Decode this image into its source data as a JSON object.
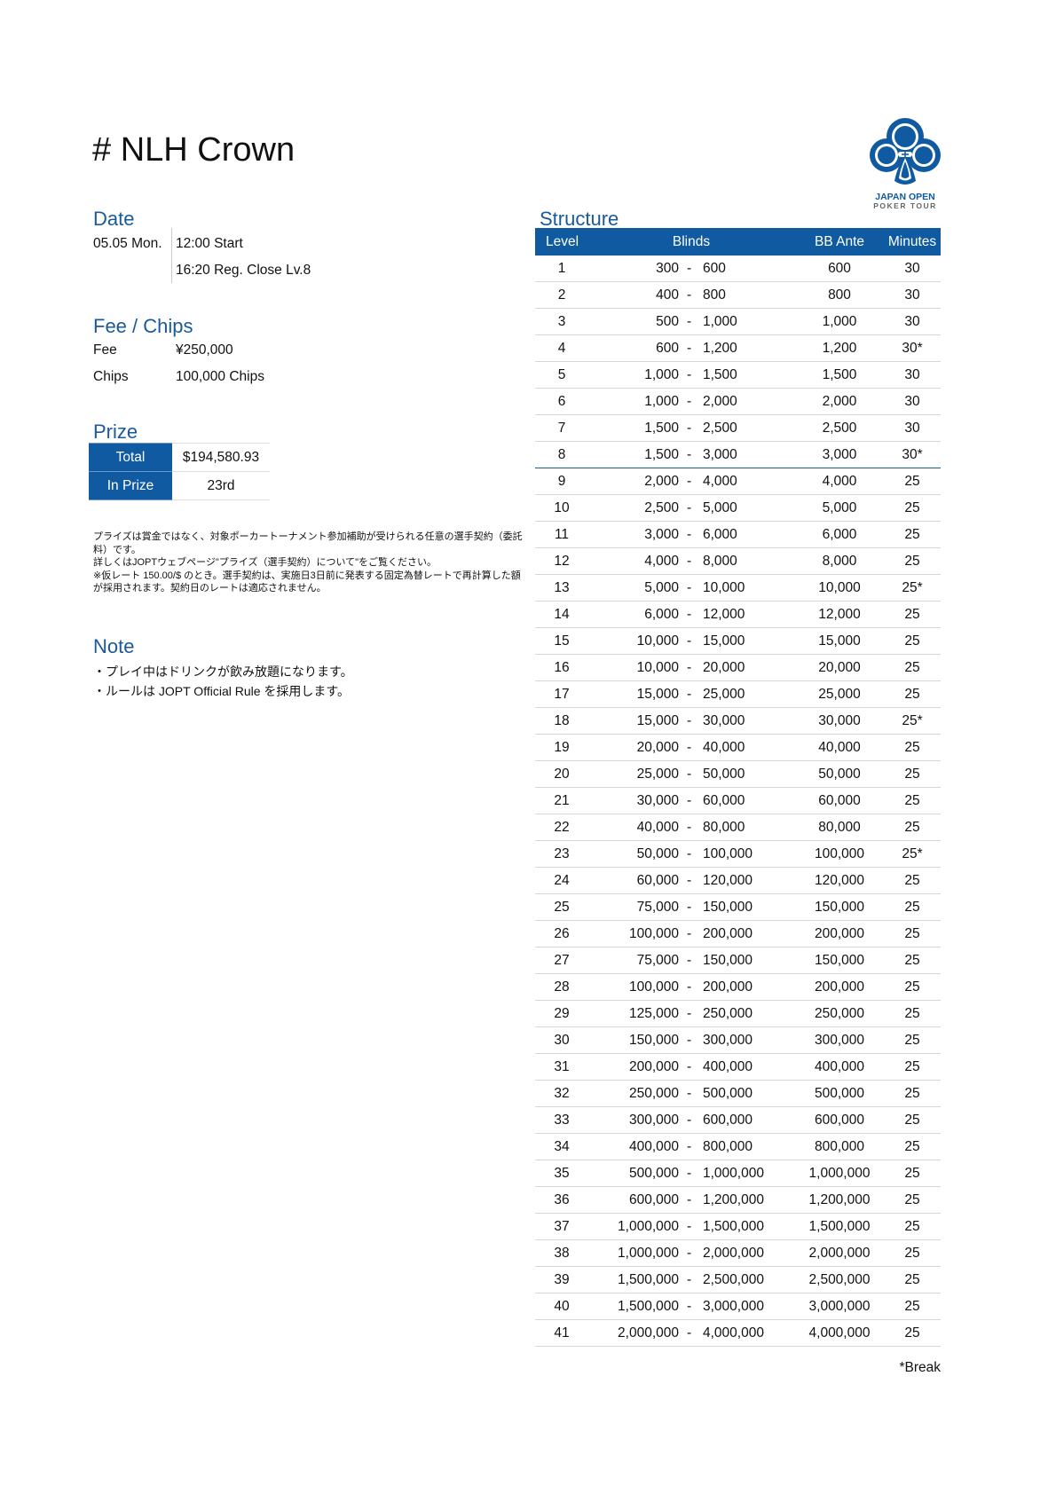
{
  "title": "# NLH Crown",
  "logo": {
    "line1": "JAPAN OPEN",
    "line2": "POKER TOUR",
    "color": "#0f5aa0"
  },
  "date": {
    "heading": "Date",
    "day": "05.05 Mon.",
    "start": "12:00 Start",
    "reg_close": "16:20 Reg. Close Lv.8"
  },
  "fee": {
    "heading": "Fee / Chips",
    "fee_label": "Fee",
    "fee_value": "¥250,000",
    "chips_label": "Chips",
    "chips_value": "100,000 Chips"
  },
  "prize": {
    "heading": "Prize",
    "total_label": "Total",
    "total_value": "$194,580.93",
    "inprize_label": "In Prize",
    "inprize_value": "23rd"
  },
  "disclaimer": [
    "プライズは賞金ではなく、対象ポーカートーナメント参加補助が受けられる任意の選手契約（委託料）です。",
    "詳しくはJOPTウェブページ\"プライズ（選手契約）について\"をご覧ください。",
    "※仮レート 150.00/$ のとき。選手契約は、実施日3日前に発表する固定為替レートで再計算した額が採用されます。契約日のレートは適応されません。"
  ],
  "note": {
    "heading": "Note",
    "lines": [
      "・プレイ中はドリンクが飲み放題になります。",
      "・ルールは JOPT Official Rule を採用します。"
    ]
  },
  "structure": {
    "heading": "Structure",
    "columns": {
      "level": "Level",
      "blinds": "Blinds",
      "ante": "BB Ante",
      "minutes": "Minutes"
    },
    "accent": "#0f5aa0",
    "rows": [
      [
        "1",
        "300",
        "600",
        "600",
        "30"
      ],
      [
        "2",
        "400",
        "800",
        "800",
        "30"
      ],
      [
        "3",
        "500",
        "1,000",
        "1,000",
        "30"
      ],
      [
        "4",
        "600",
        "1,200",
        "1,200",
        "30*"
      ],
      [
        "5",
        "1,000",
        "1,500",
        "1,500",
        "30"
      ],
      [
        "6",
        "1,000",
        "2,000",
        "2,000",
        "30"
      ],
      [
        "7",
        "1,500",
        "2,500",
        "2,500",
        "30"
      ],
      [
        "8",
        "1,500",
        "3,000",
        "3,000",
        "30*"
      ],
      [
        "9",
        "2,000",
        "4,000",
        "4,000",
        "25"
      ],
      [
        "10",
        "2,500",
        "5,000",
        "5,000",
        "25"
      ],
      [
        "11",
        "3,000",
        "6,000",
        "6,000",
        "25"
      ],
      [
        "12",
        "4,000",
        "8,000",
        "8,000",
        "25"
      ],
      [
        "13",
        "5,000",
        "10,000",
        "10,000",
        "25*"
      ],
      [
        "14",
        "6,000",
        "12,000",
        "12,000",
        "25"
      ],
      [
        "15",
        "10,000",
        "15,000",
        "15,000",
        "25"
      ],
      [
        "16",
        "10,000",
        "20,000",
        "20,000",
        "25"
      ],
      [
        "17",
        "15,000",
        "25,000",
        "25,000",
        "25"
      ],
      [
        "18",
        "15,000",
        "30,000",
        "30,000",
        "25*"
      ],
      [
        "19",
        "20,000",
        "40,000",
        "40,000",
        "25"
      ],
      [
        "20",
        "25,000",
        "50,000",
        "50,000",
        "25"
      ],
      [
        "21",
        "30,000",
        "60,000",
        "60,000",
        "25"
      ],
      [
        "22",
        "40,000",
        "80,000",
        "80,000",
        "25"
      ],
      [
        "23",
        "50,000",
        "100,000",
        "100,000",
        "25*"
      ],
      [
        "24",
        "60,000",
        "120,000",
        "120,000",
        "25"
      ],
      [
        "25",
        "75,000",
        "150,000",
        "150,000",
        "25"
      ],
      [
        "26",
        "100,000",
        "200,000",
        "200,000",
        "25"
      ],
      [
        "27",
        "75,000",
        "150,000",
        "150,000",
        "25"
      ],
      [
        "28",
        "100,000",
        "200,000",
        "200,000",
        "25"
      ],
      [
        "29",
        "125,000",
        "250,000",
        "250,000",
        "25"
      ],
      [
        "30",
        "150,000",
        "300,000",
        "300,000",
        "25"
      ],
      [
        "31",
        "200,000",
        "400,000",
        "400,000",
        "25"
      ],
      [
        "32",
        "250,000",
        "500,000",
        "500,000",
        "25"
      ],
      [
        "33",
        "300,000",
        "600,000",
        "600,000",
        "25"
      ],
      [
        "34",
        "400,000",
        "800,000",
        "800,000",
        "25"
      ],
      [
        "35",
        "500,000",
        "1,000,000",
        "1,000,000",
        "25"
      ],
      [
        "36",
        "600,000",
        "1,200,000",
        "1,200,000",
        "25"
      ],
      [
        "37",
        "1,000,000",
        "1,500,000",
        "1,500,000",
        "25"
      ],
      [
        "38",
        "1,000,000",
        "2,000,000",
        "2,000,000",
        "25"
      ],
      [
        "39",
        "1,500,000",
        "2,500,000",
        "2,500,000",
        "25"
      ],
      [
        "40",
        "1,500,000",
        "3,000,000",
        "3,000,000",
        "25"
      ],
      [
        "41",
        "2,000,000",
        "4,000,000",
        "4,000,000",
        "25"
      ]
    ],
    "separator": "-",
    "footnote": "*Break"
  }
}
